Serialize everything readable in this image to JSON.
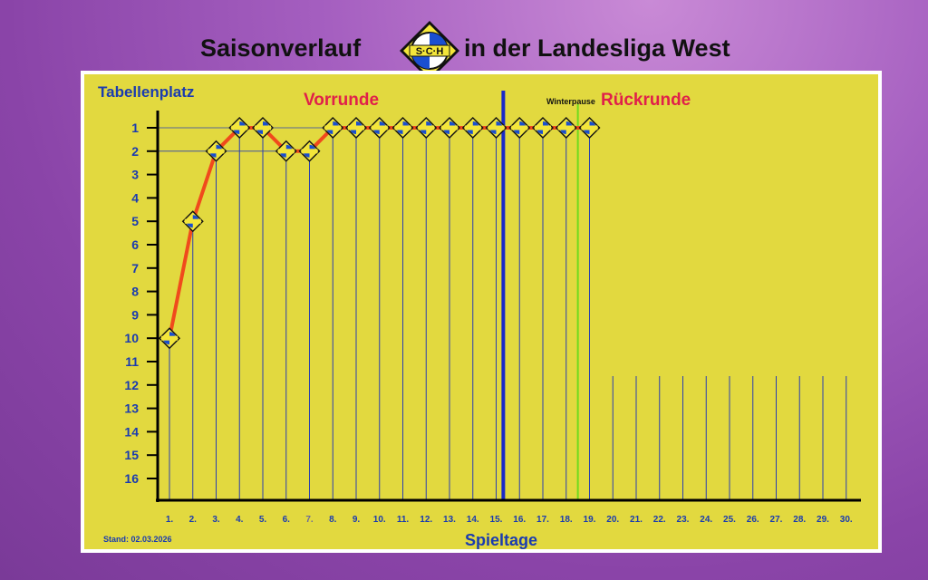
{
  "header": {
    "title_left": "Saisonverlauf",
    "title_right": "in der Landesliga West",
    "logo_text": "S·C·H"
  },
  "colors": {
    "panel": "#e2d93f",
    "line": "#f04a1c",
    "text_blue": "#1a3bb0",
    "text_red": "#e0204a",
    "grid_blue": "#2a3fb0",
    "midseason": "#1a2ac8",
    "winterpause": "#6fdc1e"
  },
  "chart_data": {
    "type": "line",
    "ylabel": "Tabellenplatz",
    "xlabel": "Spieltage",
    "section_first_half": "Vorrunde",
    "section_second_half": "Rückrunde",
    "winterpause_label": "Winterpause",
    "stand_label": "Stand: 02.03.2026",
    "x_ticks": [
      "1.",
      "2.",
      "3.",
      "4.",
      "5.",
      "6.",
      "7.",
      "8.",
      "9.",
      "10.",
      "11.",
      "12.",
      "13.",
      "14.",
      "15.",
      "16.",
      "17.",
      "18.",
      "19.",
      "20.",
      "21.",
      "22.",
      "23.",
      "24.",
      "25.",
      "26.",
      "27.",
      "28.",
      "29.",
      "30."
    ],
    "y_ticks": [
      "1",
      "2",
      "3",
      "4",
      "5",
      "6",
      "7",
      "8",
      "9",
      "10",
      "11",
      "12",
      "13",
      "14",
      "15",
      "16"
    ],
    "ylim": [
      1,
      16
    ],
    "y_inverted": true,
    "x": [
      1,
      2,
      3,
      4,
      5,
      6,
      7,
      8,
      9,
      10,
      11,
      12,
      13,
      14,
      15,
      16,
      17,
      18,
      19
    ],
    "values": [
      10,
      5,
      2,
      1,
      1,
      2,
      2,
      1,
      1,
      1,
      1,
      1,
      1,
      1,
      1,
      1,
      1,
      1,
      1
    ],
    "midseason_after": 15,
    "winterpause_after": 18
  }
}
